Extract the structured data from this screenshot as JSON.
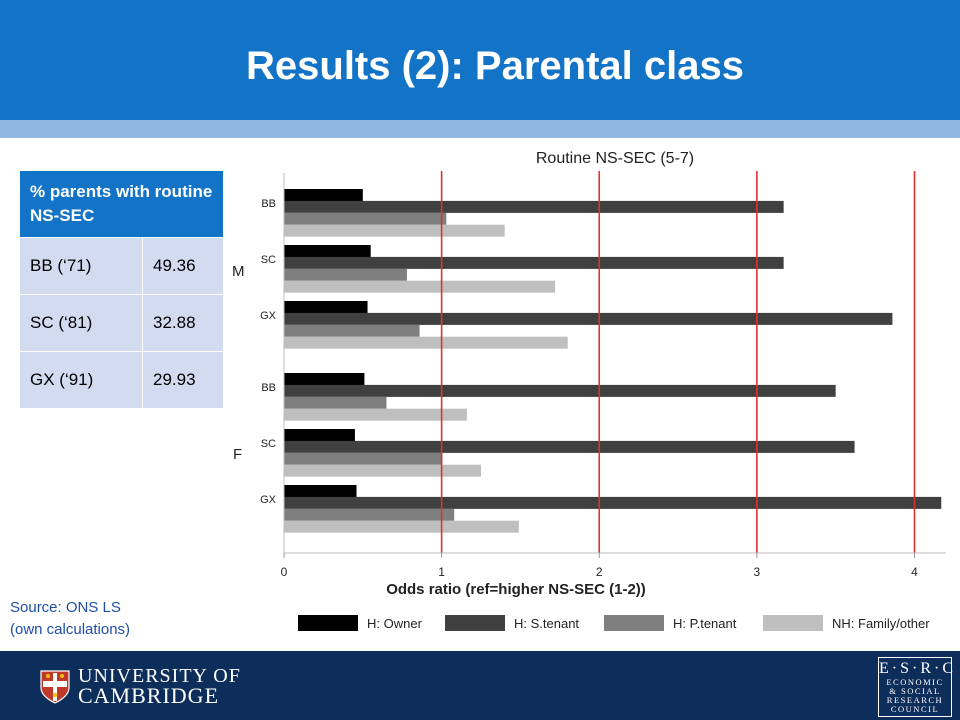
{
  "slide": {
    "title": "Results (2): Parental class",
    "source_line1": "Source: ONS LS",
    "source_line2": "(own calculations)"
  },
  "table": {
    "header": "% parents with routine NS-SEC",
    "rows": [
      {
        "label": "BB (‘71)",
        "value": "49.36"
      },
      {
        "label": "SC (‘81)",
        "value": "32.88"
      },
      {
        "label": "GX (‘91)",
        "value": "29.93"
      }
    ]
  },
  "footer": {
    "university_line1": "UNIVERSITY OF",
    "university_line2": "CAMBRIDGE",
    "esrc_top": "E·S·R·C",
    "esrc_lines": [
      "ECONOMIC",
      "& SOCIAL",
      "RESEARCH",
      "COUNCIL"
    ]
  },
  "colors": {
    "header": "#1273c7",
    "band": "#8fb6de",
    "footer": "#0d2d5a",
    "reference_line": "#e0312e"
  },
  "chart_data": {
    "type": "bar",
    "orientation": "horizontal",
    "title": "Routine NS-SEC (5-7)",
    "xlabel": "Odds ratio (ref=higher NS-SEC (1-2))",
    "xlim": [
      0,
      4.2
    ],
    "xticks": [
      0,
      1,
      2,
      3,
      4
    ],
    "reference_lines": [
      1,
      2,
      3,
      4
    ],
    "groups": [
      {
        "label": "M",
        "categories": [
          "BB",
          "SC",
          "GX"
        ]
      },
      {
        "label": "F",
        "categories": [
          "BB",
          "SC",
          "GX"
        ]
      }
    ],
    "categories": [
      "M BB",
      "M SC",
      "M GX",
      "F BB",
      "F SC",
      "F GX"
    ],
    "category_labels": [
      "BB",
      "SC",
      "GX",
      "BB",
      "SC",
      "GX"
    ],
    "series": [
      {
        "name": "H: Owner",
        "color": "#000000",
        "values": [
          0.5,
          0.55,
          0.53,
          0.51,
          0.45,
          0.46
        ]
      },
      {
        "name": "H: S.tenant",
        "color": "#404040",
        "values": [
          3.17,
          3.17,
          3.86,
          3.5,
          3.62,
          4.17
        ]
      },
      {
        "name": "H: P.tenant",
        "color": "#7f7f7f",
        "values": [
          1.03,
          0.78,
          0.86,
          0.65,
          1.0,
          1.08
        ]
      },
      {
        "name": "NH: Family/other",
        "color": "#bfbfbf",
        "values": [
          1.4,
          1.72,
          1.8,
          1.16,
          1.25,
          1.49
        ]
      }
    ],
    "legend_position": "bottom"
  }
}
